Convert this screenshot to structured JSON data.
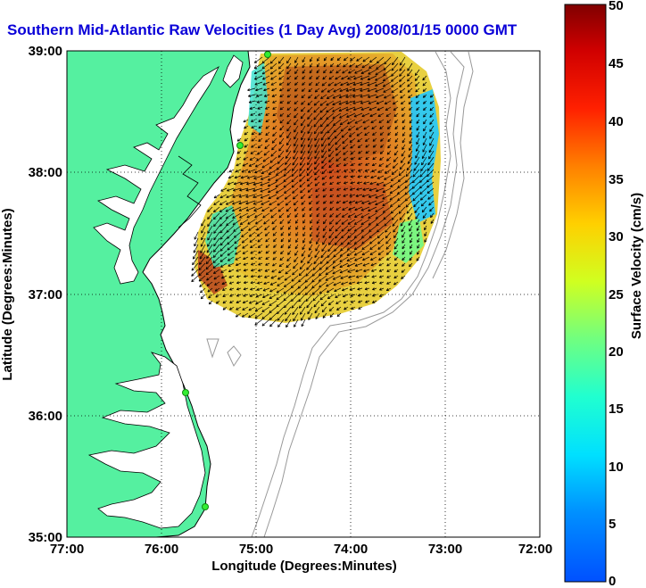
{
  "title": "Southern Mid-Atlantic Raw Velocities (1 Day Avg) 2008/01/15 0000 GMT",
  "x_axis": {
    "label": "Longitude (Degrees:Minutes)",
    "ticks": [
      "77:00",
      "76:00",
      "75:00",
      "74:00",
      "73:00",
      "72:00"
    ],
    "range": [
      -77,
      -72
    ]
  },
  "y_axis": {
    "label": "Latitude (Degrees:Minutes)",
    "ticks": [
      "35:00",
      "36:00",
      "37:00",
      "38:00",
      "39:00"
    ],
    "range": [
      35,
      39
    ]
  },
  "colorbar": {
    "label": "Surface Velocity (cm/s)",
    "ticks": [
      "0",
      "5",
      "10",
      "15",
      "20",
      "25",
      "30",
      "35",
      "40",
      "45",
      "50"
    ],
    "range": [
      0,
      50
    ],
    "colormap": "jet"
  },
  "colors": {
    "land": "#55f0a0",
    "coastline": "#000000",
    "bathymetry": "#999999",
    "grid": "#000000",
    "site_marker": "#33ee33",
    "vectors": "#000000"
  },
  "chart_data": {
    "type": "heatmap",
    "description_units": "surface current speed field in cm/s with direction vectors",
    "grid": "dotted",
    "sites": [
      {
        "lon": -74.88,
        "lat": 38.94
      },
      {
        "lon": -75.17,
        "lat": 38.22
      },
      {
        "lon": -75.73,
        "lat": 36.18
      },
      {
        "lon": -75.52,
        "lat": 35.25
      }
    ]
  }
}
